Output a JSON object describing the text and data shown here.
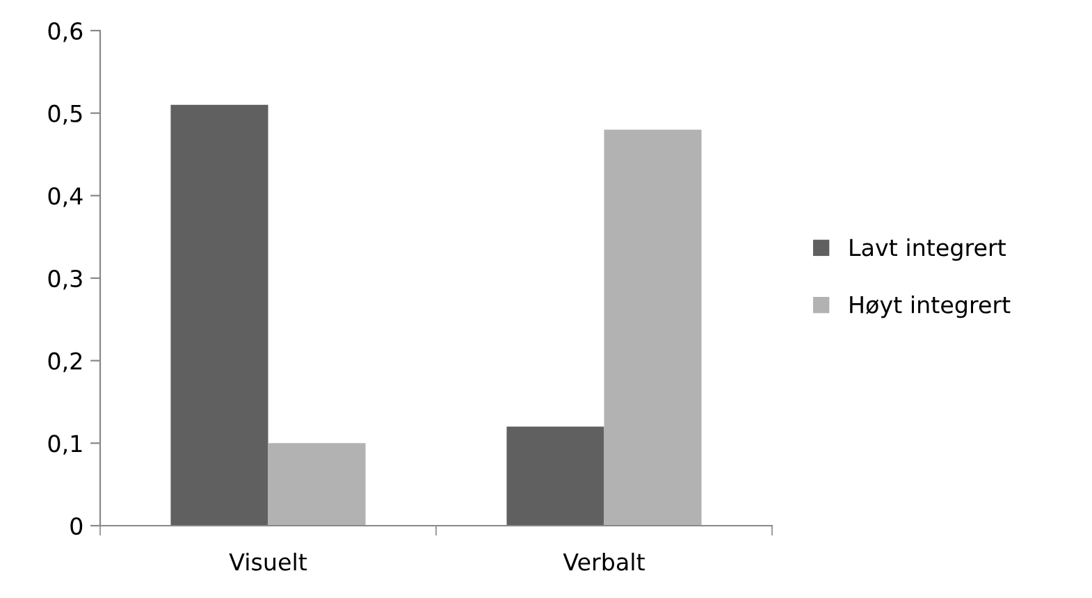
{
  "chart_data": {
    "type": "bar",
    "categories": [
      "Visuelt",
      "Verbalt"
    ],
    "series": [
      {
        "name": "Lavt integrert",
        "color": "#606060",
        "values": [
          0.51,
          0.12
        ]
      },
      {
        "name": "Høyt integrert",
        "color": "#b2b2b2",
        "values": [
          0.1,
          0.48
        ]
      }
    ],
    "ylim": [
      0,
      0.6
    ],
    "yticks": [
      {
        "value": 0,
        "label": "0"
      },
      {
        "value": 0.1,
        "label": "0,1"
      },
      {
        "value": 0.2,
        "label": "0,2"
      },
      {
        "value": 0.3,
        "label": "0,3"
      },
      {
        "value": 0.4,
        "label": "0,4"
      },
      {
        "value": 0.5,
        "label": "0,5"
      },
      {
        "value": 0.6,
        "label": "0,6"
      }
    ],
    "grid": false,
    "legend": "right"
  }
}
